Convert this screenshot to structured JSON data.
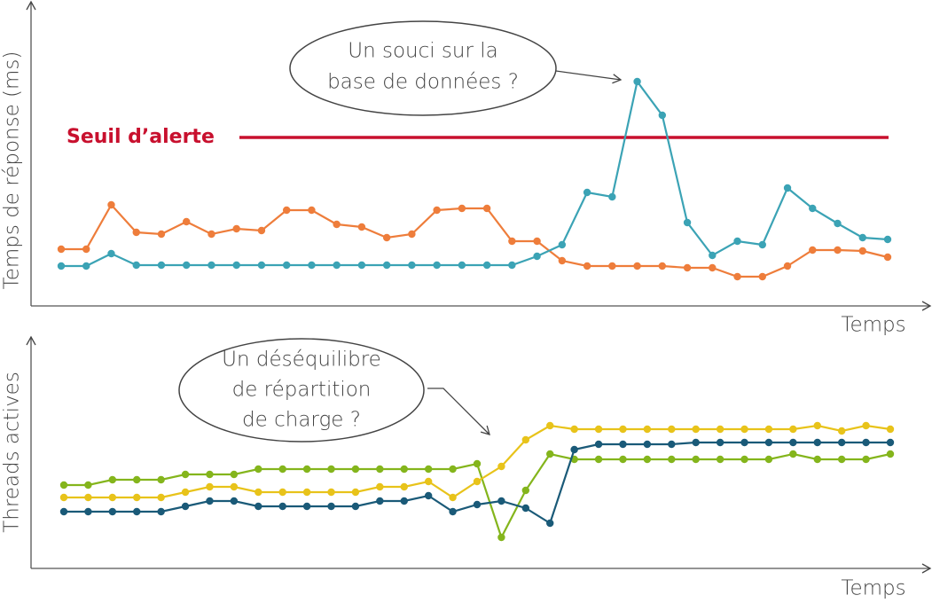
{
  "chart_data": [
    {
      "type": "line",
      "y_label": "Temps de réponse (ms)",
      "x_label": "Temps",
      "annotation": [
        "Un souci sur la",
        "base de données ?"
      ],
      "threshold": {
        "label": "Seuil d’alerte",
        "value": 190,
        "color": "#c8102e"
      },
      "categories": [
        null,
        null,
        null,
        null,
        null,
        null,
        null,
        null,
        null,
        null,
        null,
        null,
        null,
        null,
        null,
        null,
        null,
        null,
        null,
        null,
        null,
        null,
        null,
        null,
        null,
        null,
        null,
        null,
        null,
        null,
        null,
        null,
        null,
        null
      ],
      "ylim": [
        0,
        345
      ],
      "series": [
        {
          "color": "#ee7d3b",
          "values": [
            64,
            64,
            114,
            83,
            81,
            95,
            81,
            87,
            85,
            108,
            108,
            92,
            89,
            77,
            81,
            108,
            110,
            110,
            73,
            73,
            51,
            45,
            45,
            45,
            45,
            43,
            43,
            33,
            33,
            45,
            63,
            63,
            62,
            55
          ]
        },
        {
          "color": "#3ba3b5",
          "values": [
            45,
            45,
            59,
            46,
            46,
            46,
            46,
            46,
            46,
            46,
            46,
            46,
            46,
            46,
            46,
            46,
            46,
            46,
            46,
            56,
            69,
            128,
            123,
            253,
            215,
            94,
            57,
            73,
            69,
            133,
            110,
            93,
            77,
            75
          ]
        }
      ]
    },
    {
      "type": "line",
      "y_label": "Threads actives",
      "x_label": "Temps",
      "annotation": [
        "Un déséquilibre",
        "de répartition",
        "de charge ?"
      ],
      "categories": [
        null,
        null,
        null,
        null,
        null,
        null,
        null,
        null,
        null,
        null,
        null,
        null,
        null,
        null,
        null,
        null,
        null,
        null,
        null,
        null,
        null,
        null,
        null,
        null,
        null,
        null,
        null,
        null,
        null,
        null,
        null,
        null,
        null,
        null,
        null
      ],
      "ylim": [
        0,
        261
      ],
      "series": [
        {
          "color": "#84b51c",
          "values": [
            94,
            94,
            100,
            100,
            100,
            106,
            106,
            106,
            112,
            112,
            112,
            112,
            112,
            112,
            112,
            112,
            112,
            118,
            35,
            88,
            129,
            123,
            123,
            123,
            123,
            123,
            123,
            123,
            123,
            123,
            129,
            123,
            123,
            123,
            129
          ]
        },
        {
          "color": "#e8c31a",
          "values": [
            80,
            80,
            80,
            80,
            80,
            86,
            92,
            92,
            86,
            86,
            86,
            86,
            86,
            92,
            92,
            98,
            80,
            98,
            115,
            145,
            161,
            157,
            157,
            157,
            157,
            157,
            157,
            157,
            157,
            157,
            157,
            161,
            155,
            161,
            157
          ]
        },
        {
          "color": "#1a5a78",
          "values": [
            64,
            64,
            64,
            64,
            64,
            70,
            76,
            76,
            70,
            70,
            70,
            70,
            70,
            76,
            76,
            82,
            64,
            72,
            76,
            68,
            51,
            134,
            140,
            140,
            140,
            140,
            142,
            142,
            142,
            142,
            142,
            142,
            142,
            142,
            142
          ]
        }
      ]
    }
  ]
}
